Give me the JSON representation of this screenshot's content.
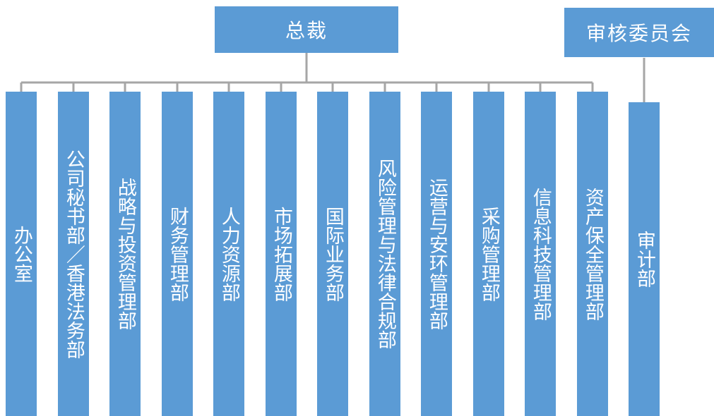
{
  "colors": {
    "box": "#5b9bd5",
    "text": "#ffffff",
    "line": "#a6a6a6"
  },
  "top": {
    "president": "总裁",
    "audit_committee": "审核委员会"
  },
  "departments": [
    "办公室",
    "公司秘书部／香港法务部",
    "战略与投资管理部",
    "财务管理部",
    "人力资源部",
    "市场拓展部",
    "国际业务部",
    "风险管理与法律合规部",
    "运营与安环管理部",
    "采购管理部",
    "信息科技管理部",
    "资产保全管理部"
  ],
  "audit_department": "审计部"
}
